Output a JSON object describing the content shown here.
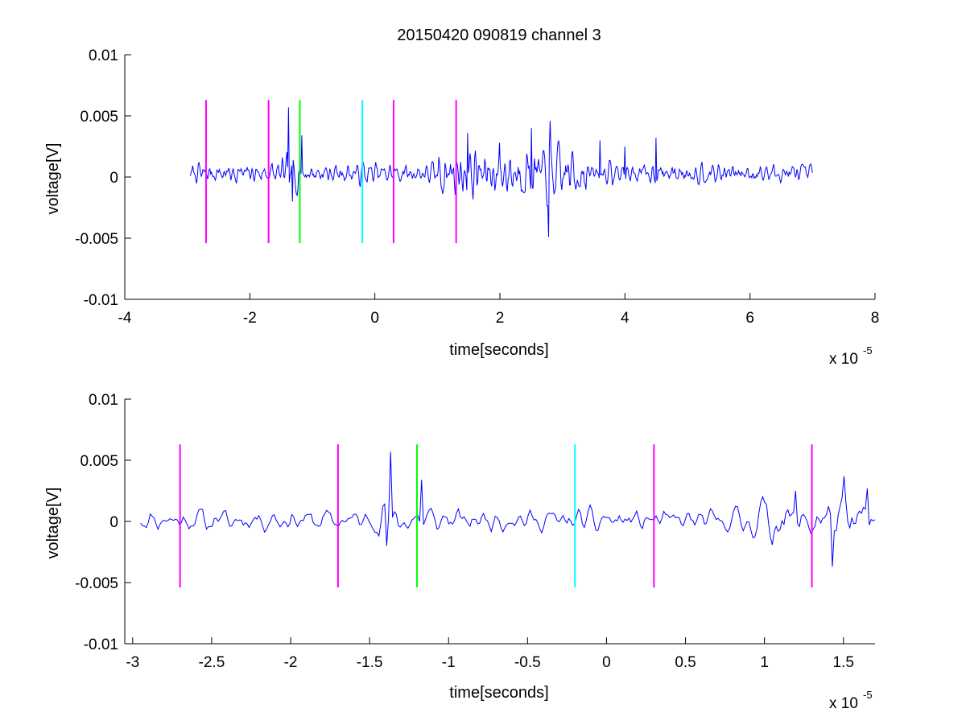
{
  "chart_data": [
    {
      "type": "line",
      "title": "20150420 090819 channel 3",
      "xlabel": "time[seconds]",
      "ylabel": "voltage[V]",
      "x_exponent_label": "x 10",
      "x_exponent": "-5",
      "xlim": [
        -4,
        8
      ],
      "ylim": [
        -0.01,
        0.01
      ],
      "xticks": [
        "-4",
        "-2",
        "0",
        "2",
        "4",
        "6",
        "8"
      ],
      "yticks": [
        "-0.01",
        "-0.005",
        "0",
        "0.005",
        "0.01"
      ],
      "series": [
        {
          "color": "#0000ff",
          "x_range": [
            -2.95,
            7.0
          ],
          "samples": 800,
          "seed": 7,
          "noise_amplitude": 0.0007,
          "offset": 0.0003,
          "spikes": [
            {
              "x": -1.38,
              "y": 0.0057
            },
            {
              "x": -1.32,
              "y": -0.002
            },
            {
              "x": -1.17,
              "y": 0.0034
            },
            {
              "x": 1.48,
              "y": 0.0036
            },
            {
              "x": 2.0,
              "y": 0.0028
            },
            {
              "x": 2.5,
              "y": 0.004
            },
            {
              "x": 2.8,
              "y": 0.0046
            },
            {
              "x": 2.78,
              "y": -0.0049
            },
            {
              "x": 3.6,
              "y": 0.003
            },
            {
              "x": 4.0,
              "y": 0.0025
            },
            {
              "x": 4.5,
              "y": 0.0032
            }
          ],
          "bursts": [
            {
              "from": 1.0,
              "to": 3.4,
              "gain": 2.6
            },
            {
              "from": -1.5,
              "to": -1.1,
              "gain": 1.8
            }
          ]
        }
      ],
      "vlines": [
        {
          "x": -2.7,
          "color": "#ff00ff",
          "y": [
            -0.0054,
            0.0063
          ]
        },
        {
          "x": -1.7,
          "color": "#ff00ff",
          "y": [
            -0.0054,
            0.0063
          ]
        },
        {
          "x": -1.2,
          "color": "#00ff00",
          "y": [
            -0.0054,
            0.0063
          ]
        },
        {
          "x": -0.2,
          "color": "#00ffff",
          "y": [
            -0.0054,
            0.0063
          ]
        },
        {
          "x": 0.3,
          "color": "#ff00ff",
          "y": [
            -0.0054,
            0.0063
          ]
        },
        {
          "x": 1.3,
          "color": "#ff00ff",
          "y": [
            -0.0054,
            0.0063
          ]
        }
      ]
    },
    {
      "type": "line",
      "title": "",
      "xlabel": "time[seconds]",
      "ylabel": "voltage[V]",
      "x_exponent_label": "x 10",
      "x_exponent": "-5",
      "xlim": [
        -3.05,
        1.7
      ],
      "ylim": [
        -0.01,
        0.01
      ],
      "xticks": [
        "-3",
        "-2.5",
        "-2",
        "-1.5",
        "-1",
        "-0.5",
        "0",
        "0.5",
        "1",
        "1.5"
      ],
      "yticks": [
        "-0.01",
        "-0.005",
        "0",
        "0.005",
        "0.01"
      ],
      "series": [
        {
          "color": "#0000ff",
          "x_range": [
            -2.95,
            1.7
          ],
          "samples": 380,
          "seed": 11,
          "noise_amplitude": 0.0008,
          "offset": 0.0001,
          "spikes": [
            {
              "x": -1.37,
              "y": 0.0057
            },
            {
              "x": -1.39,
              "y": -0.002
            },
            {
              "x": -1.17,
              "y": 0.0034
            },
            {
              "x": 1.5,
              "y": 0.0037
            },
            {
              "x": 1.43,
              "y": -0.0037
            },
            {
              "x": 1.65,
              "y": 0.0027
            },
            {
              "x": 1.2,
              "y": 0.0025
            }
          ],
          "bursts": [
            {
              "from": 0.9,
              "to": 1.7,
              "gain": 2.2
            },
            {
              "from": -1.45,
              "to": -1.1,
              "gain": 1.6
            }
          ]
        }
      ],
      "vlines": [
        {
          "x": -2.7,
          "color": "#ff00ff",
          "y": [
            -0.0054,
            0.0063
          ]
        },
        {
          "x": -1.7,
          "color": "#ff00ff",
          "y": [
            -0.0054,
            0.0063
          ]
        },
        {
          "x": -1.2,
          "color": "#00ff00",
          "y": [
            -0.0054,
            0.0063
          ]
        },
        {
          "x": -0.2,
          "color": "#00ffff",
          "y": [
            -0.0054,
            0.0063
          ]
        },
        {
          "x": 0.3,
          "color": "#ff00ff",
          "y": [
            -0.0054,
            0.0063
          ]
        },
        {
          "x": 1.3,
          "color": "#ff00ff",
          "y": [
            -0.0054,
            0.0063
          ]
        }
      ]
    }
  ]
}
